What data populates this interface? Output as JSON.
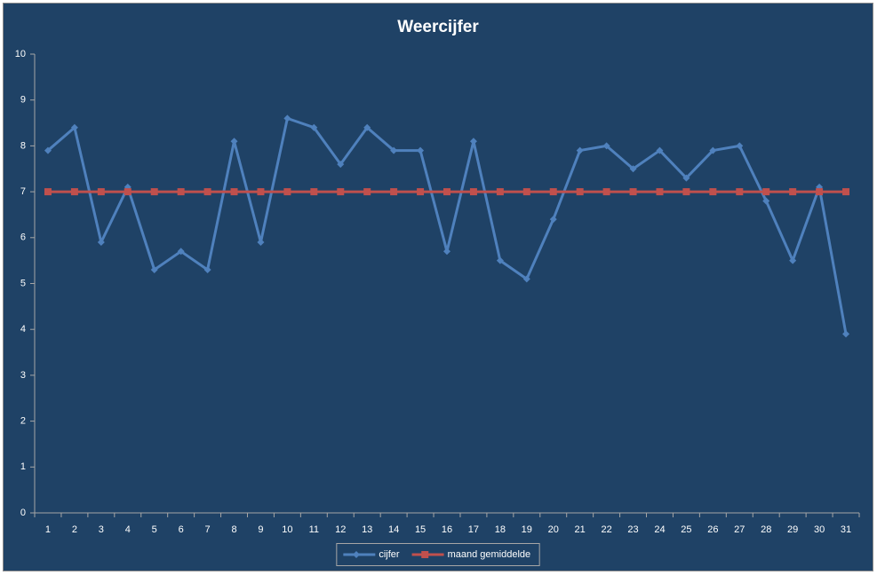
{
  "chart_data": {
    "type": "line",
    "title": "Weercijfer",
    "categories": [
      "1",
      "2",
      "3",
      "4",
      "5",
      "6",
      "7",
      "8",
      "9",
      "10",
      "11",
      "12",
      "13",
      "14",
      "15",
      "16",
      "17",
      "18",
      "19",
      "20",
      "21",
      "22",
      "23",
      "24",
      "25",
      "26",
      "27",
      "28",
      "29",
      "30",
      "31"
    ],
    "series": [
      {
        "name": "cijfer",
        "color": "#4f81bd",
        "marker": "diamond",
        "values": [
          7.9,
          8.4,
          5.9,
          7.1,
          5.3,
          5.7,
          5.3,
          8.1,
          5.9,
          8.6,
          8.4,
          7.6,
          8.4,
          7.9,
          7.9,
          5.7,
          8.1,
          5.5,
          5.1,
          6.4,
          7.9,
          8.0,
          7.5,
          7.9,
          7.3,
          7.9,
          8.0,
          6.8,
          5.5,
          7.1,
          3.9
        ]
      },
      {
        "name": "maand gemiddelde",
        "color": "#c0504d",
        "marker": "square",
        "values": [
          7.0,
          7.0,
          7.0,
          7.0,
          7.0,
          7.0,
          7.0,
          7.0,
          7.0,
          7.0,
          7.0,
          7.0,
          7.0,
          7.0,
          7.0,
          7.0,
          7.0,
          7.0,
          7.0,
          7.0,
          7.0,
          7.0,
          7.0,
          7.0,
          7.0,
          7.0,
          7.0,
          7.0,
          7.0,
          7.0,
          7.0
        ]
      }
    ],
    "ylim": [
      0,
      10
    ],
    "yticks": [
      0,
      1,
      2,
      3,
      4,
      5,
      6,
      7,
      8,
      9,
      10
    ],
    "grid": false,
    "legend": "bottom"
  }
}
